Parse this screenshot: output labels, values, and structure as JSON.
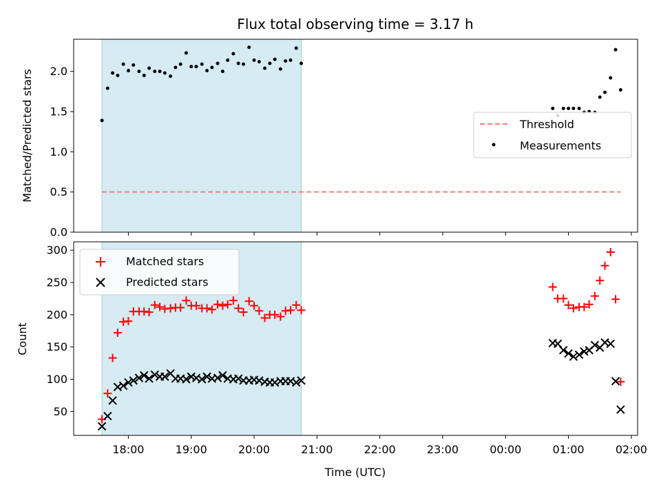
{
  "chart_data": [
    {
      "type": "scatter",
      "title": "Flux total observing time = 3.17 h",
      "xlabel": "",
      "ylabel": "Matched/Predicted stars",
      "ylim": [
        0,
        2.4
      ],
      "yticks": [
        0.0,
        0.5,
        1.0,
        1.5,
        2.0
      ],
      "ytick_labels": [
        "0.0",
        "0.5",
        "1.0",
        "1.5",
        "2.0"
      ],
      "xlim_hours": [
        17.13,
        26.1
      ],
      "highlight_span_hours": [
        17.58,
        20.75
      ],
      "highlight_color": "#add8e6",
      "legend_position": "center-right",
      "threshold": {
        "name": "Threshold",
        "value": 0.5,
        "x_hours": [
          17.58,
          25.83
        ],
        "color": "#f08080"
      },
      "series": [
        {
          "name": "Measurements",
          "color": "#000000",
          "x_hours": [
            17.58,
            17.67,
            17.75,
            17.83,
            17.92,
            18.0,
            18.08,
            18.17,
            18.25,
            18.33,
            18.42,
            18.5,
            18.58,
            18.67,
            18.75,
            18.83,
            18.92,
            19.0,
            19.08,
            19.17,
            19.25,
            19.33,
            19.42,
            19.5,
            19.58,
            19.67,
            19.75,
            19.83,
            19.92,
            20.0,
            20.08,
            20.17,
            20.25,
            20.33,
            20.42,
            20.5,
            20.58,
            20.67,
            20.75,
            24.75,
            24.83,
            24.92,
            25.0,
            25.08,
            25.17,
            25.25,
            25.33,
            25.42,
            25.5,
            25.58,
            25.67,
            25.75,
            25.83
          ],
          "y": [
            1.39,
            1.79,
            1.98,
            1.95,
            2.09,
            2.01,
            2.08,
            2.0,
            1.95,
            2.04,
            2.0,
            2.0,
            1.98,
            1.94,
            2.05,
            2.09,
            2.23,
            2.06,
            2.06,
            2.09,
            2.01,
            2.05,
            2.1,
            2.0,
            2.14,
            2.22,
            2.1,
            2.09,
            2.3,
            2.14,
            2.12,
            2.04,
            2.1,
            2.15,
            2.03,
            2.13,
            2.14,
            2.29,
            2.1,
            1.54,
            1.45,
            1.54,
            1.54,
            1.54,
            1.54,
            1.49,
            1.5,
            1.49,
            1.68,
            1.74,
            1.92,
            2.27,
            1.77
          ]
        }
      ]
    },
    {
      "type": "scatter",
      "title": "",
      "xlabel": "Time (UTC)",
      "ylabel": "Count",
      "ylim": [
        13,
        313
      ],
      "yticks": [
        50,
        100,
        150,
        200,
        250,
        300
      ],
      "ytick_labels": [
        "50",
        "100",
        "150",
        "200",
        "250",
        "300"
      ],
      "xlim_hours": [
        17.13,
        26.1
      ],
      "xticks_hours": [
        18,
        19,
        20,
        21,
        22,
        23,
        24,
        25,
        26
      ],
      "xtick_labels": [
        "18:00",
        "19:00",
        "20:00",
        "21:00",
        "22:00",
        "23:00",
        "00:00",
        "01:00",
        "02:00"
      ],
      "highlight_span_hours": [
        17.58,
        20.75
      ],
      "highlight_color": "#add8e6",
      "legend_position": "upper-left",
      "series": [
        {
          "name": "Matched stars",
          "marker": "plus",
          "color": "#ff0000",
          "x_hours": [
            17.58,
            17.67,
            17.75,
            17.83,
            17.92,
            18.0,
            18.08,
            18.17,
            18.25,
            18.33,
            18.42,
            18.5,
            18.58,
            18.67,
            18.75,
            18.83,
            18.92,
            19.0,
            19.08,
            19.17,
            19.25,
            19.33,
            19.42,
            19.5,
            19.58,
            19.67,
            19.75,
            19.83,
            19.92,
            20.0,
            20.08,
            20.17,
            20.25,
            20.33,
            20.42,
            20.5,
            20.58,
            20.67,
            20.75,
            24.75,
            24.83,
            24.92,
            25.0,
            25.08,
            25.17,
            25.25,
            25.33,
            25.42,
            25.5,
            25.58,
            25.67,
            25.75,
            25.83
          ],
          "y": [
            38,
            78,
            133,
            172,
            189,
            190,
            205,
            205,
            205,
            204,
            215,
            212,
            209,
            210,
            211,
            211,
            222,
            214,
            214,
            210,
            210,
            208,
            216,
            214,
            216,
            222,
            210,
            204,
            221,
            214,
            206,
            195,
            200,
            200,
            197,
            206,
            207,
            215,
            207,
            243,
            225,
            225,
            215,
            210,
            212,
            212,
            216,
            229,
            253,
            276,
            297,
            224,
            96
          ]
        },
        {
          "name": "Predicted stars",
          "marker": "x",
          "color": "#000000",
          "x_hours": [
            17.58,
            17.67,
            17.75,
            17.83,
            17.92,
            18.0,
            18.08,
            18.17,
            18.25,
            18.33,
            18.42,
            18.5,
            18.58,
            18.67,
            18.75,
            18.83,
            18.92,
            19.0,
            19.08,
            19.17,
            19.25,
            19.33,
            19.42,
            19.5,
            19.58,
            19.67,
            19.75,
            19.83,
            19.92,
            20.0,
            20.08,
            20.17,
            20.25,
            20.33,
            20.42,
            20.5,
            20.58,
            20.67,
            20.75,
            24.75,
            24.83,
            24.92,
            25.0,
            25.08,
            25.17,
            25.25,
            25.33,
            25.42,
            25.5,
            25.58,
            25.67,
            25.75,
            25.83
          ],
          "y": [
            27,
            43,
            67,
            88,
            90,
            95,
            98,
            102,
            106,
            101,
            107,
            104,
            104,
            109,
            101,
            101,
            100,
            104,
            102,
            100,
            104,
            101,
            102,
            106,
            101,
            100,
            101,
            98,
            98,
            99,
            98,
            96,
            95,
            95,
            97,
            97,
            97,
            95,
            98,
            156,
            155,
            145,
            140,
            135,
            138,
            143,
            145,
            153,
            149,
            157,
            155,
            97,
            53
          ]
        }
      ]
    }
  ]
}
